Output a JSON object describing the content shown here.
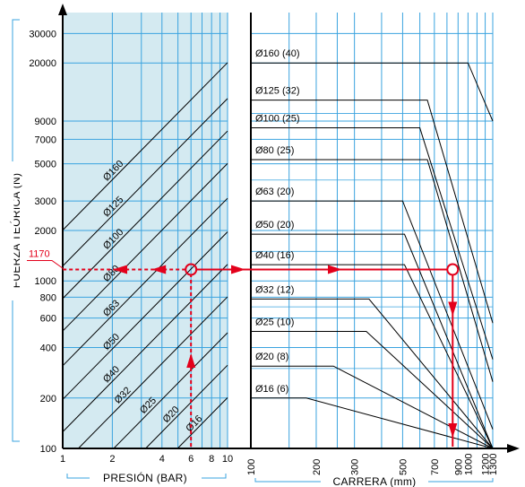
{
  "chart_data": {
    "type": "line",
    "ylabel": "FUERZA TEÓRICA (N)",
    "y_scale": "log",
    "ylim": [
      100,
      40000
    ],
    "y_ticks": [
      100,
      200,
      400,
      600,
      800,
      1000,
      2000,
      3000,
      5000,
      7000,
      9000,
      20000,
      30000
    ],
    "left_panel": {
      "xlabel": "PRESIÓN (BAR)",
      "x_scale": "log",
      "xlim": [
        1,
        10
      ],
      "x_ticks": [
        1,
        2,
        4,
        6,
        8,
        10
      ],
      "diagonals": [
        {
          "name": "Ø160",
          "bore_mm": 160
        },
        {
          "name": "Ø125",
          "bore_mm": 125
        },
        {
          "name": "Ø100",
          "bore_mm": 100
        },
        {
          "name": "Ø80",
          "bore_mm": 80
        },
        {
          "name": "Ø63",
          "bore_mm": 63
        },
        {
          "name": "Ø50",
          "bore_mm": 50
        },
        {
          "name": "Ø40",
          "bore_mm": 40
        },
        {
          "name": "Ø32",
          "bore_mm": 32
        },
        {
          "name": "Ø25",
          "bore_mm": 25
        },
        {
          "name": "Ø20",
          "bore_mm": 20
        },
        {
          "name": "Ø16",
          "bore_mm": 16
        }
      ]
    },
    "right_panel": {
      "xlabel": "CARRERA (mm)",
      "x_scale": "log",
      "xlim": [
        100,
        1300
      ],
      "x_ticks": [
        100,
        200,
        300,
        500,
        700,
        900,
        1000,
        1200,
        1300
      ],
      "x_tick_labels": [
        "100",
        "200",
        "300",
        "500",
        "700",
        "900",
        "1000",
        "1200",
        "1300"
      ],
      "curves": [
        {
          "name": "Ø160 (40)",
          "force": 20000,
          "knee": 1000,
          "end_force": 9000
        },
        {
          "name": "Ø125 (32)",
          "force": 12000,
          "knee": 650,
          "end_force": 560
        },
        {
          "name": "Ø100 (25)",
          "force": 8200,
          "knee": 600,
          "end_force": 340
        },
        {
          "name": "Ø80 (25)",
          "force": 5300,
          "knee": 650,
          "end_force": 250
        },
        {
          "name": "Ø63 (20)",
          "force": 3000,
          "knee": 500,
          "end_force": 130
        },
        {
          "name": "Ø50 (20)",
          "force": 1900,
          "knee": 510,
          "end_force": 100
        },
        {
          "name": "Ø40 (16)",
          "force": 1250,
          "knee": 510,
          "end_force": 100
        },
        {
          "name": "Ø32 (12)",
          "force": 780,
          "knee": 350,
          "end_force": 100
        },
        {
          "name": "Ø25 (10)",
          "force": 500,
          "knee": 340,
          "end_force": 100
        },
        {
          "name": "Ø20 (8)",
          "force": 310,
          "knee": 240,
          "end_force": 100
        },
        {
          "name": "Ø16 (6)",
          "force": 200,
          "knee": 180,
          "end_force": 100
        }
      ]
    },
    "example": {
      "force_label": "1170",
      "force": 1170,
      "pressure": 6,
      "stroke": 850
    },
    "grid": true
  },
  "colors": {
    "grid": "#3aa3df",
    "panel_fill": "#d4eaf1",
    "highlight": "#e3001b",
    "ink": "#000000"
  }
}
